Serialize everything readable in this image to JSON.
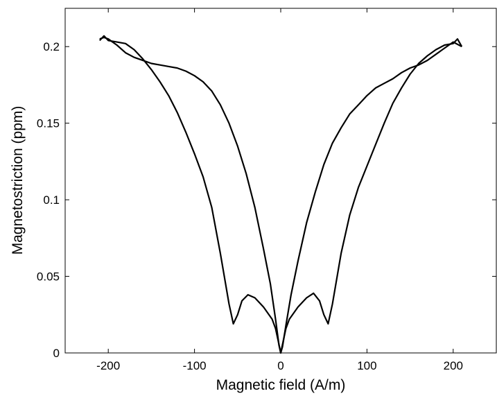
{
  "chart_data": {
    "type": "line",
    "title": "",
    "xlabel": "Magnetic field (A/m)",
    "ylabel": "Magnetostriction (ppm)",
    "xlim": [
      -250,
      250
    ],
    "ylim": [
      0,
      0.225
    ],
    "xticks": [
      -200,
      -100,
      0,
      100,
      200
    ],
    "yticks": [
      0,
      0.05,
      0.1,
      0.15,
      0.2
    ],
    "xtick_labels": [
      "-200",
      "-100",
      "0",
      "100",
      "200"
    ],
    "ytick_labels": [
      "0",
      "0.05",
      "0.1",
      "0.15",
      "0.2"
    ],
    "grid": false,
    "legend": "none",
    "line_color": "#000000",
    "series": [
      {
        "points": [
          [
            -210,
            0.205
          ],
          [
            -205,
            0.206
          ],
          [
            -200,
            0.205
          ],
          [
            -190,
            0.201
          ],
          [
            -180,
            0.196
          ],
          [
            -170,
            0.193
          ],
          [
            -160,
            0.191
          ],
          [
            -150,
            0.189
          ],
          [
            -140,
            0.188
          ],
          [
            -130,
            0.187
          ],
          [
            -120,
            0.186
          ],
          [
            -110,
            0.184
          ],
          [
            -100,
            0.181
          ],
          [
            -90,
            0.177
          ],
          [
            -80,
            0.171
          ],
          [
            -70,
            0.162
          ],
          [
            -60,
            0.15
          ],
          [
            -50,
            0.135
          ],
          [
            -40,
            0.117
          ],
          [
            -30,
            0.095
          ],
          [
            -20,
            0.068
          ],
          [
            -12,
            0.045
          ],
          [
            -6,
            0.022
          ],
          [
            -2,
            0.005
          ],
          [
            0,
            0.0
          ],
          [
            3,
            0.008
          ],
          [
            6,
            0.016
          ],
          [
            10,
            0.022
          ],
          [
            20,
            0.03
          ],
          [
            30,
            0.036
          ],
          [
            38,
            0.039
          ],
          [
            45,
            0.034
          ],
          [
            50,
            0.025
          ],
          [
            55,
            0.019
          ],
          [
            60,
            0.032
          ],
          [
            70,
            0.065
          ],
          [
            80,
            0.09
          ],
          [
            90,
            0.108
          ],
          [
            100,
            0.122
          ],
          [
            110,
            0.136
          ],
          [
            120,
            0.15
          ],
          [
            130,
            0.163
          ],
          [
            140,
            0.173
          ],
          [
            150,
            0.182
          ],
          [
            160,
            0.189
          ],
          [
            170,
            0.194
          ],
          [
            180,
            0.198
          ],
          [
            190,
            0.201
          ],
          [
            200,
            0.202
          ],
          [
            205,
            0.205
          ],
          [
            210,
            0.2
          ]
        ]
      },
      {
        "points": [
          [
            210,
            0.2
          ],
          [
            200,
            0.203
          ],
          [
            190,
            0.199
          ],
          [
            180,
            0.195
          ],
          [
            170,
            0.191
          ],
          [
            160,
            0.188
          ],
          [
            150,
            0.186
          ],
          [
            140,
            0.183
          ],
          [
            130,
            0.179
          ],
          [
            120,
            0.176
          ],
          [
            110,
            0.173
          ],
          [
            100,
            0.168
          ],
          [
            90,
            0.162
          ],
          [
            80,
            0.156
          ],
          [
            70,
            0.147
          ],
          [
            60,
            0.137
          ],
          [
            50,
            0.123
          ],
          [
            40,
            0.105
          ],
          [
            30,
            0.085
          ],
          [
            20,
            0.06
          ],
          [
            12,
            0.038
          ],
          [
            6,
            0.018
          ],
          [
            2,
            0.004
          ],
          [
            0,
            0.0
          ],
          [
            -3,
            0.008
          ],
          [
            -6,
            0.016
          ],
          [
            -10,
            0.022
          ],
          [
            -20,
            0.03
          ],
          [
            -30,
            0.036
          ],
          [
            -38,
            0.038
          ],
          [
            -45,
            0.034
          ],
          [
            -50,
            0.025
          ],
          [
            -55,
            0.019
          ],
          [
            -60,
            0.032
          ],
          [
            -70,
            0.065
          ],
          [
            -80,
            0.095
          ],
          [
            -90,
            0.115
          ],
          [
            -100,
            0.13
          ],
          [
            -110,
            0.144
          ],
          [
            -120,
            0.157
          ],
          [
            -130,
            0.168
          ],
          [
            -140,
            0.177
          ],
          [
            -150,
            0.185
          ],
          [
            -160,
            0.192
          ],
          [
            -170,
            0.198
          ],
          [
            -180,
            0.202
          ],
          [
            -190,
            0.203
          ],
          [
            -200,
            0.204
          ],
          [
            -205,
            0.207
          ],
          [
            -210,
            0.204
          ]
        ]
      }
    ]
  }
}
